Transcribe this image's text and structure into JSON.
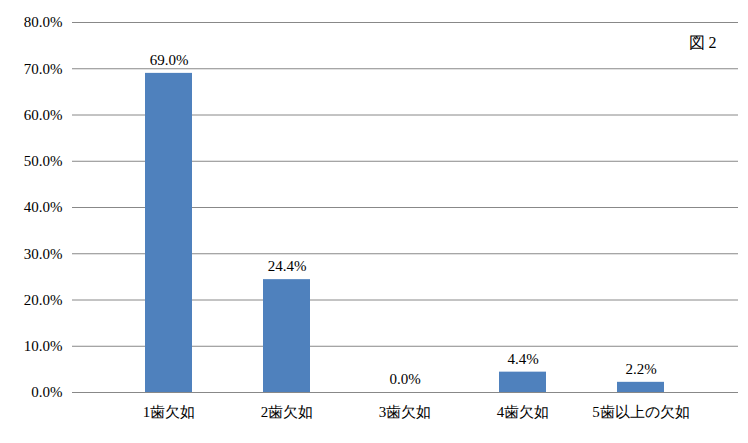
{
  "chart_data": {
    "type": "bar",
    "annotation": "図 2",
    "categories": [
      "1歯欠如",
      "2歯欠如",
      "3歯欠如",
      "4歯欠如",
      "5歯以上の欠如"
    ],
    "values": [
      69.0,
      24.4,
      0.0,
      4.4,
      2.2
    ],
    "value_labels": [
      "69.0%",
      "24.4%",
      "0.0%",
      "4.4%",
      "2.2%"
    ],
    "data_labels": true,
    "color": "#4f81bd",
    "ylim": [
      0,
      80
    ],
    "yticks": [
      {
        "value": 0,
        "label": "0.0%"
      },
      {
        "value": 10,
        "label": "10.0%"
      },
      {
        "value": 20,
        "label": "20.0%"
      },
      {
        "value": 30,
        "label": "30.0%"
      },
      {
        "value": 40,
        "label": "40.0%"
      },
      {
        "value": 50,
        "label": "50.0%"
      },
      {
        "value": 60,
        "label": "60.0%"
      },
      {
        "value": 70,
        "label": "70.0%"
      },
      {
        "value": 80,
        "label": "80.0%"
      }
    ],
    "grid": true
  }
}
